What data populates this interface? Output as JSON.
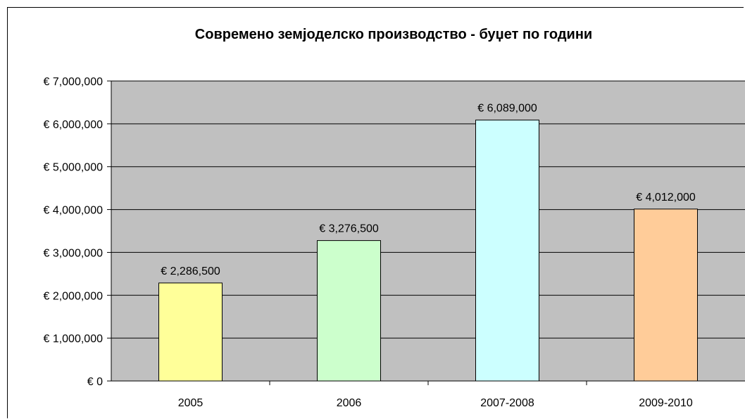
{
  "chart_data": {
    "type": "bar",
    "title": "Современо земјоделско производство - буџет по години",
    "xlabel": "",
    "ylabel": "",
    "categories": [
      "2005",
      "2006",
      "2007-2008",
      "2009-2010"
    ],
    "values": [
      2286500,
      3276500,
      6089000,
      4012000
    ],
    "data_labels": [
      "€ 2,286,500",
      "€ 3,276,500",
      "€ 6,089,000",
      "€ 4,012,000"
    ],
    "bar_colors": [
      "#FFFF99",
      "#CCFFCC",
      "#CCFFFF",
      "#FFCC99"
    ],
    "plot_background": "#C0C0C0",
    "ylim": [
      0,
      7000000
    ],
    "y_ticks": [
      0,
      1000000,
      2000000,
      3000000,
      4000000,
      5000000,
      6000000,
      7000000
    ],
    "y_tick_labels": [
      "€ 0",
      "€ 1,000,000",
      "€ 2,000,000",
      "€ 3,000,000",
      "€ 4,000,000",
      "€ 5,000,000",
      "€ 6,000,000",
      "€ 7,000,000"
    ],
    "grid": true,
    "legend": "none"
  }
}
